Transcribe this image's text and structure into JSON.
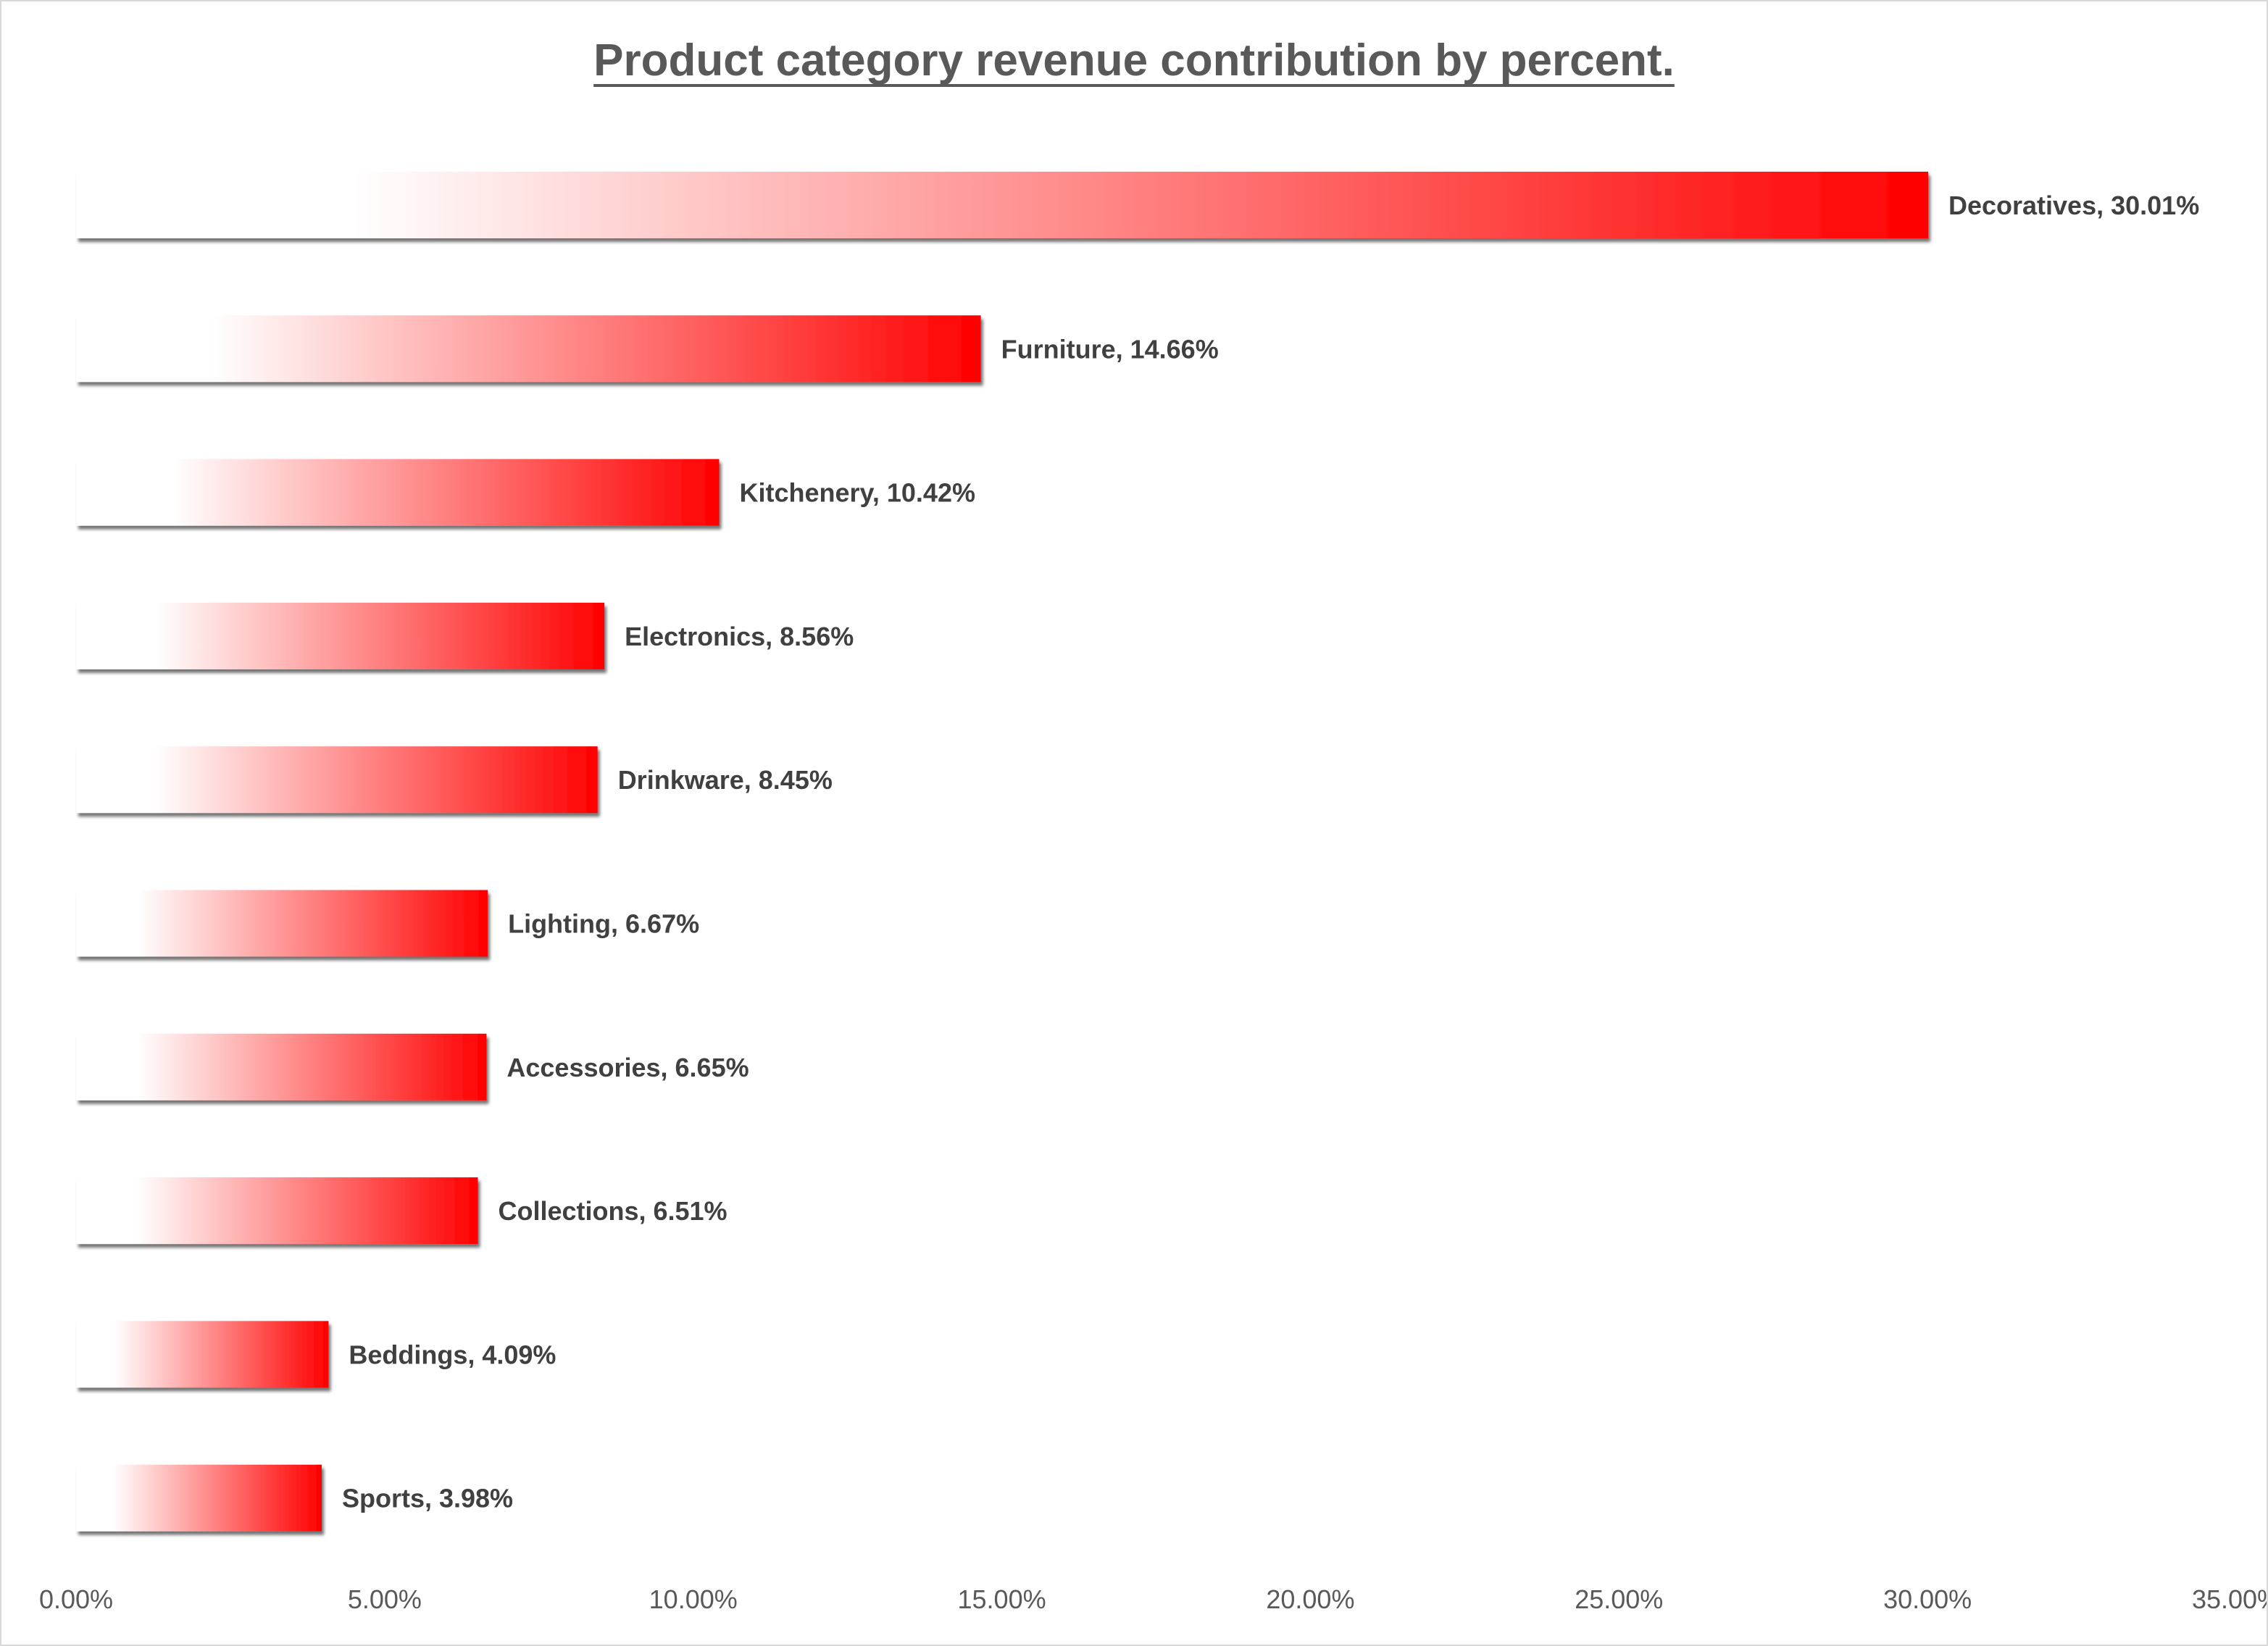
{
  "chart_data": {
    "type": "bar",
    "orientation": "horizontal",
    "title": "Product category revenue contribution by percent.",
    "categories": [
      "Decoratives",
      "Furniture",
      "Kitchenery",
      "Electronics",
      "Drinkware",
      "Lighting",
      "Accessories",
      "Collections",
      "Beddings",
      "Sports"
    ],
    "values": [
      30.01,
      14.66,
      10.42,
      8.56,
      8.45,
      6.67,
      6.65,
      6.51,
      4.09,
      3.98
    ],
    "data_labels": [
      "Decoratives, 30.01%",
      "Furniture, 14.66%",
      "Kitchenery, 10.42%",
      "Electronics, 8.56%",
      "Drinkware, 8.45%",
      "Lighting, 6.67%",
      "Accessories, 6.65%",
      "Collections, 6.51%",
      "Beddings, 4.09%",
      "Sports, 3.98%"
    ],
    "x_ticks": [
      0,
      5,
      10,
      15,
      20,
      25,
      30,
      35
    ],
    "x_tick_labels": [
      "0.00%",
      "5.00%",
      "10.00%",
      "15.00%",
      "20.00%",
      "25.00%",
      "30.00%",
      "35.00%"
    ],
    "xlim": [
      0,
      35
    ],
    "xlabel": "",
    "ylabel": "",
    "grid": false,
    "legend": "none",
    "bar_fill": "gradient white to red",
    "colors": {
      "bar_start": "#ffffff",
      "bar_end": "#ff0000",
      "title": "#595959",
      "label": "#404040",
      "tick": "#595959"
    }
  }
}
